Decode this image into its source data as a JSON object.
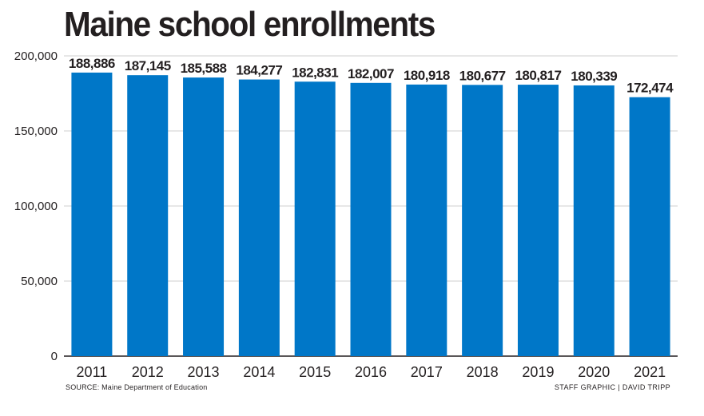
{
  "chart_data": {
    "type": "bar",
    "title": "Maine school enrollments",
    "categories": [
      "2011",
      "2012",
      "2013",
      "2014",
      "2015",
      "2016",
      "2017",
      "2018",
      "2019",
      "2020",
      "2021"
    ],
    "values": [
      188886,
      187145,
      185588,
      184277,
      182831,
      182007,
      180918,
      180677,
      180817,
      180339,
      172474
    ],
    "value_labels": [
      "188,886",
      "187,145",
      "185,588",
      "184,277",
      "182,831",
      "182,007",
      "180,918",
      "180,677",
      "180,817",
      "180,339",
      "172,474"
    ],
    "yticks": [
      0,
      50000,
      100000,
      150000,
      200000
    ],
    "ytick_labels": [
      "0",
      "50,000",
      "100,000",
      "150,000",
      "200,000"
    ],
    "ylim": [
      0,
      200000
    ],
    "xlabel": "",
    "ylabel": "",
    "grid": true,
    "bar_color": "#0077c8"
  },
  "footer": {
    "source": "SOURCE: Maine Department of Education",
    "credit": "STAFF GRAPHIC | DAVID TRIPP"
  }
}
